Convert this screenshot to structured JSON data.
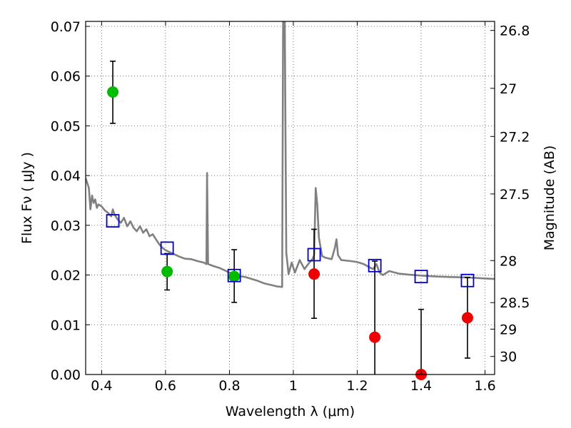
{
  "chart_data": {
    "type": "scatter",
    "title": "",
    "xlabel": "Wavelength  λ (μm)",
    "ylabel": "Flux  Fν  ( μJy )",
    "ylabel_right": "Magnitude (AB)",
    "xlim": [
      0.35,
      1.63
    ],
    "ylim": [
      0.0,
      0.071
    ],
    "grid": true,
    "legend": "none",
    "x_ticks": [
      0.4,
      0.6,
      0.8,
      1.0,
      1.2,
      1.4,
      1.6
    ],
    "x_tick_labels": [
      "0.4",
      "0.6",
      "0.8",
      "1",
      "1.2",
      "1.4",
      "1.6"
    ],
    "y_ticks": [
      0.0,
      0.01,
      0.02,
      0.03,
      0.04,
      0.05,
      0.06,
      0.07
    ],
    "y_tick_labels": [
      "0.00",
      "0.01",
      "0.02",
      "0.03",
      "0.04",
      "0.05",
      "0.06",
      "0.07"
    ],
    "right_ticks": [
      {
        "mag": 26.8,
        "label": "26.8"
      },
      {
        "mag": 27.0,
        "label": "27"
      },
      {
        "mag": 27.2,
        "label": "27.2"
      },
      {
        "mag": 27.5,
        "label": "27.5"
      },
      {
        "mag": 28.0,
        "label": "28"
      },
      {
        "mag": 28.5,
        "label": "28.5"
      },
      {
        "mag": 29.0,
        "label": "29"
      },
      {
        "mag": 30.0,
        "label": "30"
      }
    ],
    "colors": {
      "spectrum": "#808080",
      "detection": "#00bb00",
      "nondetection": "#ee0000",
      "model": "#0000cc",
      "errorbar": "#000000",
      "grid": "#555555"
    },
    "series": [
      {
        "kind": "line",
        "points": [
          [
            0.35,
            0.0395
          ],
          [
            0.36,
            0.0375
          ],
          [
            0.365,
            0.0332
          ],
          [
            0.37,
            0.036
          ],
          [
            0.375,
            0.0345
          ],
          [
            0.38,
            0.0352
          ],
          [
            0.385,
            0.0335
          ],
          [
            0.39,
            0.0342
          ],
          [
            0.4,
            0.0338
          ],
          [
            0.41,
            0.033
          ],
          [
            0.42,
            0.0325
          ],
          [
            0.43,
            0.0318
          ],
          [
            0.435,
            0.0332
          ],
          [
            0.44,
            0.0322
          ],
          [
            0.45,
            0.0312
          ],
          [
            0.46,
            0.0305
          ],
          [
            0.47,
            0.0315
          ],
          [
            0.48,
            0.0298
          ],
          [
            0.49,
            0.0308
          ],
          [
            0.5,
            0.0295
          ],
          [
            0.51,
            0.0288
          ],
          [
            0.52,
            0.0298
          ],
          [
            0.53,
            0.0285
          ],
          [
            0.54,
            0.0292
          ],
          [
            0.55,
            0.0278
          ],
          [
            0.56,
            0.0282
          ],
          [
            0.57,
            0.0272
          ],
          [
            0.58,
            0.0262
          ],
          [
            0.59,
            0.0255
          ],
          [
            0.6,
            0.025
          ],
          [
            0.62,
            0.0244
          ],
          [
            0.64,
            0.0238
          ],
          [
            0.66,
            0.0233
          ],
          [
            0.68,
            0.0232
          ],
          [
            0.7,
            0.0228
          ],
          [
            0.72,
            0.0225
          ],
          [
            0.728,
            0.0222
          ],
          [
            0.73,
            0.0405
          ],
          [
            0.733,
            0.0222
          ],
          [
            0.75,
            0.0218
          ],
          [
            0.77,
            0.0214
          ],
          [
            0.79,
            0.0208
          ],
          [
            0.81,
            0.0202
          ],
          [
            0.83,
            0.0198
          ],
          [
            0.85,
            0.0196
          ],
          [
            0.87,
            0.0192
          ],
          [
            0.89,
            0.0188
          ],
          [
            0.91,
            0.0183
          ],
          [
            0.93,
            0.018
          ],
          [
            0.95,
            0.0177
          ],
          [
            0.965,
            0.0176
          ],
          [
            0.968,
            0.0725
          ],
          [
            0.973,
            0.0725
          ],
          [
            0.978,
            0.0245
          ],
          [
            0.985,
            0.0202
          ],
          [
            0.995,
            0.0225
          ],
          [
            1.005,
            0.0205
          ],
          [
            1.02,
            0.023
          ],
          [
            1.035,
            0.0212
          ],
          [
            1.05,
            0.0225
          ],
          [
            1.06,
            0.0232
          ],
          [
            1.065,
            0.024
          ],
          [
            1.07,
            0.0375
          ],
          [
            1.075,
            0.034
          ],
          [
            1.08,
            0.0275
          ],
          [
            1.09,
            0.0238
          ],
          [
            1.1,
            0.0235
          ],
          [
            1.12,
            0.0232
          ],
          [
            1.13,
            0.0255
          ],
          [
            1.135,
            0.0272
          ],
          [
            1.14,
            0.024
          ],
          [
            1.15,
            0.023
          ],
          [
            1.18,
            0.0228
          ],
          [
            1.2,
            0.0226
          ],
          [
            1.22,
            0.0222
          ],
          [
            1.24,
            0.0215
          ],
          [
            1.25,
            0.0212
          ],
          [
            1.26,
            0.0222
          ],
          [
            1.27,
            0.0205
          ],
          [
            1.28,
            0.02
          ],
          [
            1.3,
            0.0208
          ],
          [
            1.33,
            0.0203
          ],
          [
            1.36,
            0.0201
          ],
          [
            1.4,
            0.0199
          ],
          [
            1.45,
            0.0197
          ],
          [
            1.5,
            0.0196
          ],
          [
            1.55,
            0.0195
          ],
          [
            1.6,
            0.0193
          ],
          [
            1.63,
            0.0192
          ]
        ]
      },
      {
        "kind": "errorbar",
        "marker": "circle",
        "color_key": "detection",
        "points": [
          {
            "x": 0.435,
            "y": 0.0568,
            "ylo": 0.0505,
            "yhi": 0.063
          },
          {
            "x": 0.605,
            "y": 0.0207,
            "ylo": 0.017,
            "yhi": 0.0243
          },
          {
            "x": 0.815,
            "y": 0.0197,
            "ylo": 0.0145,
            "yhi": 0.0251
          }
        ]
      },
      {
        "kind": "errorbar",
        "marker": "circle",
        "color_key": "nondetection",
        "points": [
          {
            "x": 1.065,
            "y": 0.0202,
            "ylo": 0.0113,
            "yhi": 0.0292
          },
          {
            "x": 1.255,
            "y": 0.0075,
            "ylo": 0.0,
            "yhi": 0.0228
          },
          {
            "x": 1.4,
            "y": 0.0,
            "ylo": 0.0,
            "yhi": 0.0131
          },
          {
            "x": 1.545,
            "y": 0.0114,
            "ylo": 0.0033,
            "yhi": 0.0195
          }
        ]
      },
      {
        "kind": "scatter",
        "marker": "square",
        "color_key": "model",
        "points": [
          {
            "x": 0.435,
            "y": 0.0309
          },
          {
            "x": 0.605,
            "y": 0.0254
          },
          {
            "x": 0.815,
            "y": 0.0199
          },
          {
            "x": 1.065,
            "y": 0.0241
          },
          {
            "x": 1.255,
            "y": 0.0219
          },
          {
            "x": 1.4,
            "y": 0.0197
          },
          {
            "x": 1.545,
            "y": 0.0189
          }
        ]
      }
    ]
  }
}
